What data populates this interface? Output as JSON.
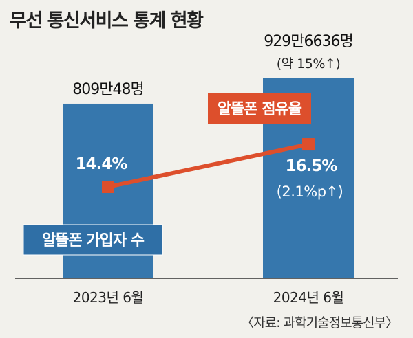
{
  "title": "무선 통신서비스 통계 현황",
  "source": "〈자료: 과학기술정보통신부〉",
  "colors": {
    "background": "#f2f1ec",
    "bar": "#3677ad",
    "line": "#dd4f2c",
    "label_box_blue": "#2f6fa6",
    "label_box_red": "#dd4f2c",
    "axis": "#333333"
  },
  "chart_data": {
    "type": "bar",
    "categories": [
      "2023년 6월",
      "2024년 6월"
    ],
    "series": [
      {
        "name": "알뜰폰 가입자 수",
        "type": "bar",
        "values": [
          8090048,
          9296636
        ],
        "value_labels": [
          "809만48명",
          "929만6636명"
        ],
        "change_labels": [
          "",
          "(약 15%↑)"
        ]
      },
      {
        "name": "알뜰폰 점유율",
        "type": "line",
        "values": [
          14.4,
          16.5
        ],
        "value_labels": [
          "14.4%",
          "16.5%"
        ],
        "change_labels": [
          "",
          "(2.1%p↑)"
        ]
      }
    ],
    "grid": false
  }
}
